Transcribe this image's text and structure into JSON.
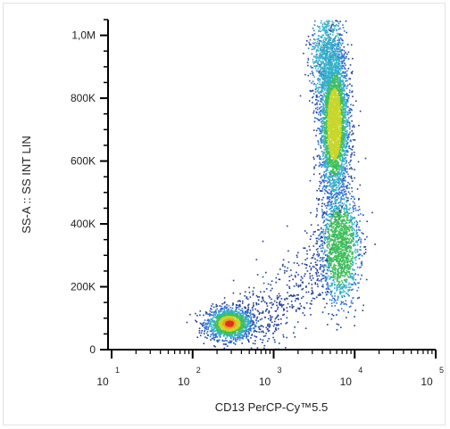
{
  "chart_data": {
    "type": "scatter",
    "subtype": "flow-cytometry-density-dot-plot",
    "title": "",
    "xlabel": "CD13 PerCP-Cy™5.5",
    "ylabel": "SS-A :: SS INT LIN",
    "x_scale": "log",
    "xlim": [
      10,
      100000
    ],
    "x_ticks": [
      {
        "base": "10",
        "exp": "1"
      },
      {
        "base": "10",
        "exp": "2"
      },
      {
        "base": "10",
        "exp": "3"
      },
      {
        "base": "10",
        "exp": "4"
      },
      {
        "base": "10",
        "exp": "5"
      }
    ],
    "y_scale": "linear",
    "ylim": [
      0,
      1050000
    ],
    "y_ticks": [
      {
        "label": "0",
        "value": 0
      },
      {
        "label": "200K",
        "value": 200000
      },
      {
        "label": "400K",
        "value": 400000
      },
      {
        "label": "600K",
        "value": 600000
      },
      {
        "label": "800K",
        "value": 800000
      },
      {
        "label": "1,0M",
        "value": 1000000
      }
    ],
    "grid": false,
    "legend": "none",
    "color_scale": [
      "#1f3d99",
      "#2f6fd0",
      "#35b0c8",
      "#3fbf5a",
      "#c8d62a",
      "#f0a020",
      "#e0301e"
    ],
    "populations": [
      {
        "cx": 280,
        "cy": 85000,
        "sx_log": 0.14,
        "sy": 25000,
        "n": 1600,
        "peak_color": "#e0301e"
      },
      {
        "cx": 5500,
        "cy": 720000,
        "sx_log": 0.09,
        "sy": 120000,
        "n": 3200,
        "peak_color": "#c8d62a"
      },
      {
        "cx": 6500,
        "cy": 330000,
        "sx_log": 0.12,
        "sy": 90000,
        "n": 1500,
        "peak_color": "#3fbf5a"
      },
      {
        "cx": 4500,
        "cy": 930000,
        "sx_log": 0.1,
        "sy": 80000,
        "n": 900,
        "peak_color": "#35b0c8"
      }
    ]
  }
}
